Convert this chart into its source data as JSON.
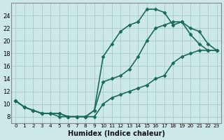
{
  "xlabel": "Humidex (Indice chaleur)",
  "bg_color": "#cce8e8",
  "grid_color": "#aacece",
  "line_color": "#1a6b5a",
  "line1_x": [
    0,
    1,
    2,
    3,
    4,
    5,
    6,
    7,
    8,
    9,
    10,
    11,
    12,
    13,
    14,
    15,
    16,
    17,
    18,
    19,
    20,
    21,
    22,
    23
  ],
  "line1_y": [
    10.5,
    9.5,
    9.0,
    8.5,
    8.5,
    8.5,
    8.0,
    8.0,
    8.0,
    9.0,
    17.5,
    19.5,
    21.5,
    22.5,
    23.0,
    25.0,
    25.0,
    24.5,
    22.5,
    23.0,
    21.0,
    19.5,
    18.5,
    18.5
  ],
  "line2_x": [
    0,
    1,
    2,
    3,
    4,
    5,
    6,
    7,
    8,
    9,
    10,
    11,
    12,
    13,
    14,
    15,
    16,
    17,
    18,
    19,
    20,
    21,
    22,
    23
  ],
  "line2_y": [
    10.5,
    9.5,
    9.0,
    8.5,
    8.5,
    8.5,
    8.0,
    8.0,
    8.0,
    9.0,
    13.5,
    14.0,
    14.5,
    15.5,
    17.5,
    20.0,
    22.0,
    22.5,
    23.0,
    23.0,
    22.0,
    21.5,
    19.5,
    18.5
  ],
  "line3_x": [
    0,
    1,
    2,
    3,
    4,
    5,
    6,
    7,
    8,
    9,
    10,
    11,
    12,
    13,
    14,
    15,
    16,
    17,
    18,
    19,
    20,
    21,
    22,
    23
  ],
  "line3_y": [
    10.5,
    9.5,
    9.0,
    8.5,
    8.5,
    8.0,
    8.0,
    8.0,
    8.0,
    8.0,
    10.0,
    11.0,
    11.5,
    12.0,
    12.5,
    13.0,
    14.0,
    14.5,
    16.5,
    17.5,
    18.0,
    18.5,
    18.5,
    18.5
  ],
  "xlim": [
    -0.5,
    23.5
  ],
  "ylim": [
    7,
    26
  ],
  "yticks": [
    8,
    10,
    12,
    14,
    16,
    18,
    20,
    22,
    24
  ],
  "xticks": [
    0,
    1,
    2,
    3,
    4,
    5,
    6,
    7,
    8,
    9,
    10,
    11,
    12,
    13,
    14,
    15,
    16,
    17,
    18,
    19,
    20,
    21,
    22,
    23
  ],
  "xtick_labels": [
    "0",
    "1",
    "2",
    "3",
    "4",
    "5",
    "6",
    "7",
    "8",
    "9",
    "10",
    "11",
    "12",
    "13",
    "14",
    "15",
    "16",
    "17",
    "18",
    "19",
    "20",
    "21",
    "22",
    "23"
  ],
  "marker": "D",
  "marker_size": 2.5,
  "linewidth": 1.2
}
